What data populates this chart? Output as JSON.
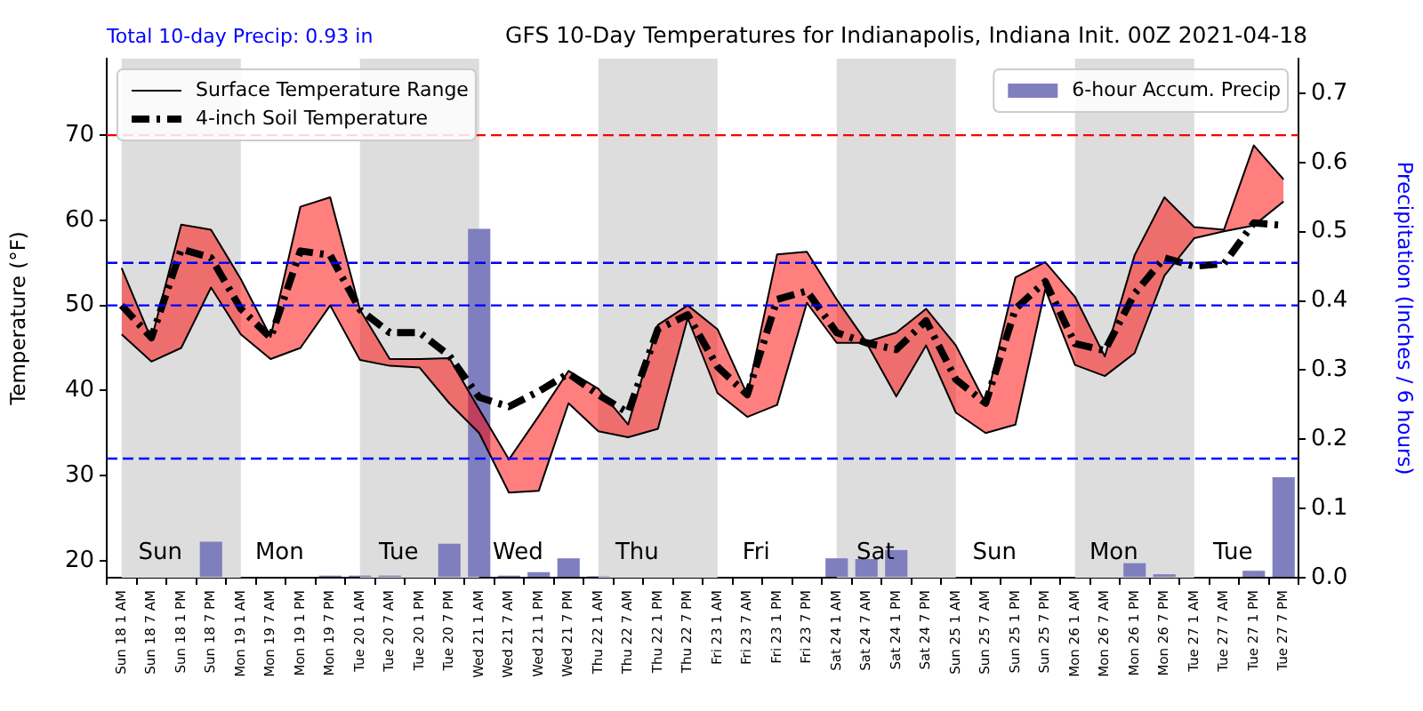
{
  "chart_data": {
    "type": "line",
    "title": "GFS 10-Day Temperatures for Indianapolis, Indiana Init. 00Z 2021-04-18",
    "ylabel": "Temperature (°F)",
    "y2label": "Precipitation (Inches / 6 hours)",
    "categories": [
      "Sun 18 1 AM",
      "Sun 18 7 AM",
      "Sun 18 1 PM",
      "Sun 18 7 PM",
      "Mon 19 1 AM",
      "Mon 19 7 AM",
      "Mon 19 1 PM",
      "Mon 19 7 PM",
      "Tue 20 1 AM",
      "Tue 20 7 AM",
      "Tue 20 1 PM",
      "Tue 20 7 PM",
      "Wed 21 1 AM",
      "Wed 21 7 AM",
      "Wed 21 1 PM",
      "Wed 21 7 PM",
      "Thu 22 1 AM",
      "Thu 22 7 AM",
      "Thu 22 1 PM",
      "Thu 22 7 PM",
      "Fri 23 1 AM",
      "Fri 23 7 AM",
      "Fri 23 1 PM",
      "Fri 23 7 PM",
      "Sat 24 1 AM",
      "Sat 24 7 AM",
      "Sat 24 1 PM",
      "Sat 24 7 PM",
      "Sun 25 1 AM",
      "Sun 25 7 AM",
      "Sun 25 1 PM",
      "Sun 25 7 PM",
      "Mon 26 1 AM",
      "Mon 26 7 AM",
      "Mon 26 1 PM",
      "Mon 26 7 PM",
      "Tue 27 1 AM",
      "Tue 27 7 AM",
      "Tue 27 1 PM",
      "Tue 27 7 PM"
    ],
    "series": [
      {
        "name": "Surface Temperature Range",
        "type": "area",
        "color": "#ff0000",
        "values": [
          54.4,
          46.0,
          59.5,
          58.9,
          53.1,
          46.3,
          61.6,
          62.7,
          49.5,
          43.7,
          43.7,
          43.8,
          37.8,
          31.9,
          37.0,
          42.3,
          40.2,
          36.0,
          47.7,
          50.0,
          47.2,
          39.5,
          56.0,
          56.3,
          50.7,
          45.7,
          46.8,
          49.6,
          45.3,
          38.5,
          53.3,
          55.1,
          51.0,
          44.0,
          55.9,
          62.7,
          59.2,
          58.9,
          68.8,
          64.8
        ]
      },
      {
        "type": "line",
        "color": "#000000",
        "values": [
          46.6,
          43.4,
          45.0,
          52.1,
          46.6,
          43.7,
          45.0,
          50.0,
          43.6,
          42.9,
          42.7,
          38.5,
          35.0,
          28.0,
          28.2,
          38.5,
          35.2,
          34.5,
          35.5,
          48.5,
          39.7,
          36.9,
          38.3,
          50.3,
          45.6,
          45.6,
          39.3,
          45.3,
          37.4,
          35.0,
          36.0,
          51.9,
          43.0,
          41.7,
          44.4,
          53.5,
          57.9,
          58.7,
          59.4,
          62.2
        ]
      },
      {
        "name": "4-inch Soil Temperature",
        "color": "#000000",
        "line_style": "dashed",
        "values": [
          50.0,
          46.2,
          56.6,
          55.6,
          49.6,
          46.2,
          56.4,
          55.9,
          49.5,
          46.8,
          46.8,
          44.1,
          39.2,
          38.1,
          39.9,
          42.0,
          39.5,
          37.4,
          47.2,
          48.9,
          42.8,
          39.5,
          50.7,
          51.7,
          46.8,
          45.6,
          44.8,
          48.2,
          41.3,
          38.5,
          49.6,
          52.8,
          45.5,
          44.7,
          51.4,
          55.6,
          54.6,
          54.9,
          59.7,
          59.4
        ]
      },
      {
        "name": "6-hour Accum. Precip",
        "type": "bar",
        "axis": "y2",
        "color": "#7f7fbf",
        "values": [
          0,
          0,
          0,
          0.052,
          0,
          0,
          0,
          0.003,
          0.003,
          0.003,
          0,
          0.049,
          0.504,
          0.003,
          0.008,
          0.028,
          0.002,
          0,
          0,
          0,
          0,
          0,
          0,
          0,
          0.028,
          0.027,
          0.04,
          0,
          0,
          0,
          0,
          0,
          0,
          0,
          0.021,
          0.005,
          0,
          0,
          0.01,
          0.145
        ]
      }
    ],
    "ylim": [
      18,
      79
    ],
    "yticks": [
      20,
      30,
      40,
      50,
      60,
      70
    ],
    "y2lim": [
      0,
      0.75
    ],
    "y2ticks": [
      {
        "value": 0,
        "label": "0.0"
      },
      0.1,
      0.2,
      0.3,
      0.4,
      0.5,
      0.6,
      0.7
    ],
    "marker": "none",
    "legend": "top left",
    "ref_lines": [
      {
        "axis": "y",
        "value": 70,
        "color": "#ff0000",
        "line_style": "dashed"
      },
      {
        "axis": "y",
        "value": 55,
        "color": "#0000ff",
        "line_style": "dashed"
      },
      {
        "axis": "y",
        "value": 50,
        "color": "#0000ff",
        "line_style": "dashed"
      },
      {
        "axis": "y",
        "value": 32,
        "color": "#0000ff",
        "line_style": "dashed"
      }
    ],
    "bands": [
      {
        "axis": "x",
        "from": "Sun 18 1 AM",
        "to": "Mon 19 1 AM",
        "color": "#dddddd"
      },
      {
        "axis": "x",
        "from": "Tue 20 1 AM",
        "to": "Wed 21 1 AM",
        "color": "#dddddd"
      },
      {
        "axis": "x",
        "from": "Thu 22 1 AM",
        "to": "Fri 23 1 AM",
        "color": "#dddddd"
      },
      {
        "axis": "x",
        "from": "Sat 24 1 AM",
        "to": "Sun 25 1 AM",
        "color": "#dddddd"
      },
      {
        "axis": "x",
        "from": "Mon 26 1 AM",
        "to": "Tue 27 1 AM",
        "color": "#dddddd"
      }
    ],
    "annotations": [
      "Total 10-day Precip: 0.93 in",
      "Sun",
      "Mon",
      "Tue",
      "Wed",
      "Thu",
      "Fri",
      "Sat",
      "Sun",
      "Mon",
      "Tue"
    ]
  }
}
